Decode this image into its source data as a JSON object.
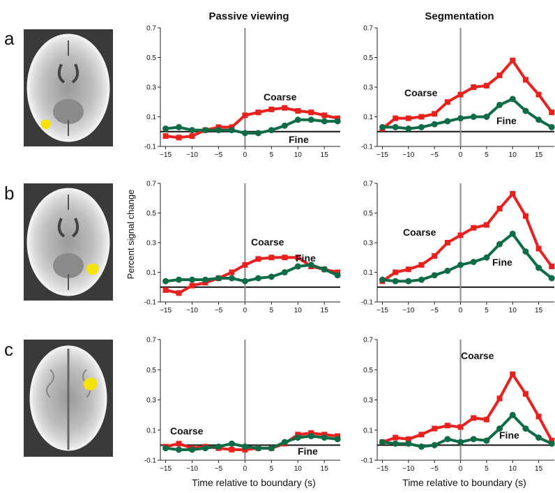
{
  "column_titles": [
    "Passive viewing",
    "Segmentation"
  ],
  "row_labels": [
    "a",
    "b",
    "c"
  ],
  "ylabel": "Percent signal change",
  "xlabel": "Time relative to boundary (s)",
  "x_ticks": [
    -15,
    -10,
    -5,
    0,
    5,
    10,
    15
  ],
  "y_ticks": [
    -0.1,
    0.1,
    0.3,
    0.5,
    0.7
  ],
  "colors": {
    "coarse": "#e8211f",
    "fine": "#0d6b45",
    "boundary": "#888888"
  },
  "brain_images": [
    {
      "row": "a",
      "view": "axial",
      "highlight": "yellow"
    },
    {
      "row": "b",
      "view": "axial",
      "highlight": "yellow"
    },
    {
      "row": "c",
      "view": "axial-superior",
      "highlight": "yellow"
    }
  ],
  "chart_data": [
    {
      "id": "a-passive",
      "type": "line",
      "row": "a",
      "panel": "Passive viewing",
      "x": [
        -15,
        -12.5,
        -10,
        -7.5,
        -5,
        -2.5,
        0,
        2.5,
        5,
        7.5,
        10,
        12.5,
        15,
        17.5
      ],
      "xlim": [
        -16,
        18
      ],
      "ylim": [
        -0.1,
        0.7
      ],
      "series": [
        {
          "name": "Coarse",
          "values": [
            -0.03,
            -0.04,
            -0.03,
            0.01,
            0.03,
            0.03,
            0.11,
            0.13,
            0.15,
            0.16,
            0.14,
            0.13,
            0.11,
            0.09
          ]
        },
        {
          "name": "Fine",
          "values": [
            0.02,
            0.03,
            0.01,
            0.01,
            0.01,
            0.01,
            -0.01,
            -0.01,
            0.01,
            0.04,
            0.08,
            0.08,
            0.07,
            0.07
          ]
        }
      ]
    },
    {
      "id": "a-seg",
      "type": "line",
      "row": "a",
      "panel": "Segmentation",
      "x": [
        -15,
        -12.5,
        -10,
        -7.5,
        -5,
        -2.5,
        0,
        2.5,
        5,
        7.5,
        10,
        12.5,
        15,
        17.5
      ],
      "xlim": [
        -16,
        18
      ],
      "ylim": [
        -0.1,
        0.7
      ],
      "series": [
        {
          "name": "Coarse",
          "values": [
            0.02,
            0.09,
            0.09,
            0.1,
            0.12,
            0.2,
            0.25,
            0.3,
            0.31,
            0.38,
            0.48,
            0.35,
            0.25,
            0.13
          ]
        },
        {
          "name": "Fine",
          "values": [
            0.03,
            0.03,
            0.02,
            0.03,
            0.05,
            0.07,
            0.09,
            0.1,
            0.1,
            0.18,
            0.22,
            0.14,
            0.08,
            0.03
          ]
        }
      ]
    },
    {
      "id": "b-passive",
      "type": "line",
      "row": "b",
      "panel": "Passive viewing",
      "x": [
        -15,
        -12.5,
        -10,
        -7.5,
        -5,
        -2.5,
        0,
        2.5,
        5,
        7.5,
        10,
        12.5,
        15,
        17.5
      ],
      "xlim": [
        -16,
        18
      ],
      "ylim": [
        -0.1,
        0.7
      ],
      "series": [
        {
          "name": "Coarse",
          "values": [
            -0.02,
            -0.04,
            0.01,
            0.03,
            0.06,
            0.1,
            0.15,
            0.19,
            0.2,
            0.2,
            0.2,
            0.14,
            0.12,
            0.1
          ]
        },
        {
          "name": "Fine",
          "values": [
            0.04,
            0.05,
            0.05,
            0.05,
            0.06,
            0.06,
            0.04,
            0.06,
            0.07,
            0.1,
            0.14,
            0.15,
            0.12,
            0.08
          ]
        }
      ]
    },
    {
      "id": "b-seg",
      "type": "line",
      "row": "b",
      "panel": "Segmentation",
      "x": [
        -15,
        -12.5,
        -10,
        -7.5,
        -5,
        -2.5,
        0,
        2.5,
        5,
        7.5,
        10,
        12.5,
        15,
        17.5
      ],
      "xlim": [
        -16,
        18
      ],
      "ylim": [
        -0.1,
        0.7
      ],
      "series": [
        {
          "name": "Coarse",
          "values": [
            0.04,
            0.1,
            0.12,
            0.15,
            0.21,
            0.3,
            0.35,
            0.4,
            0.42,
            0.53,
            0.63,
            0.48,
            0.26,
            0.14
          ]
        },
        {
          "name": "Fine",
          "values": [
            0.05,
            0.04,
            0.04,
            0.05,
            0.08,
            0.11,
            0.15,
            0.17,
            0.2,
            0.29,
            0.36,
            0.24,
            0.13,
            0.06
          ]
        }
      ]
    },
    {
      "id": "c-passive",
      "type": "line",
      "row": "c",
      "panel": "Passive viewing",
      "x": [
        -15,
        -12.5,
        -10,
        -7.5,
        -5,
        -2.5,
        0,
        2.5,
        5,
        7.5,
        10,
        12.5,
        15,
        17.5
      ],
      "xlim": [
        -16,
        18
      ],
      "ylim": [
        -0.1,
        0.7
      ],
      "series": [
        {
          "name": "Coarse",
          "values": [
            -0.01,
            0.01,
            -0.02,
            -0.01,
            -0.02,
            -0.03,
            -0.03,
            -0.02,
            -0.02,
            0.01,
            0.07,
            0.08,
            0.07,
            0.06
          ]
        },
        {
          "name": "Fine",
          "values": [
            -0.02,
            -0.03,
            -0.03,
            -0.02,
            -0.01,
            0.01,
            -0.01,
            -0.02,
            -0.02,
            0.02,
            0.05,
            0.06,
            0.05,
            0.04
          ]
        }
      ]
    },
    {
      "id": "c-seg",
      "type": "line",
      "row": "c",
      "panel": "Segmentation",
      "x": [
        -15,
        -12.5,
        -10,
        -7.5,
        -5,
        -2.5,
        0,
        2.5,
        5,
        7.5,
        10,
        12.5,
        15,
        17.5
      ],
      "xlim": [
        -16,
        18
      ],
      "ylim": [
        -0.1,
        0.7
      ],
      "series": [
        {
          "name": "Coarse",
          "values": [
            0.02,
            0.05,
            0.04,
            0.07,
            0.11,
            0.13,
            0.12,
            0.18,
            0.17,
            0.31,
            0.47,
            0.34,
            0.19,
            0.03
          ]
        },
        {
          "name": "Fine",
          "values": [
            0.02,
            0.01,
            0.01,
            -0.01,
            0.0,
            0.04,
            0.02,
            0.04,
            0.03,
            0.11,
            0.2,
            0.11,
            0.05,
            0.01
          ]
        }
      ]
    }
  ]
}
